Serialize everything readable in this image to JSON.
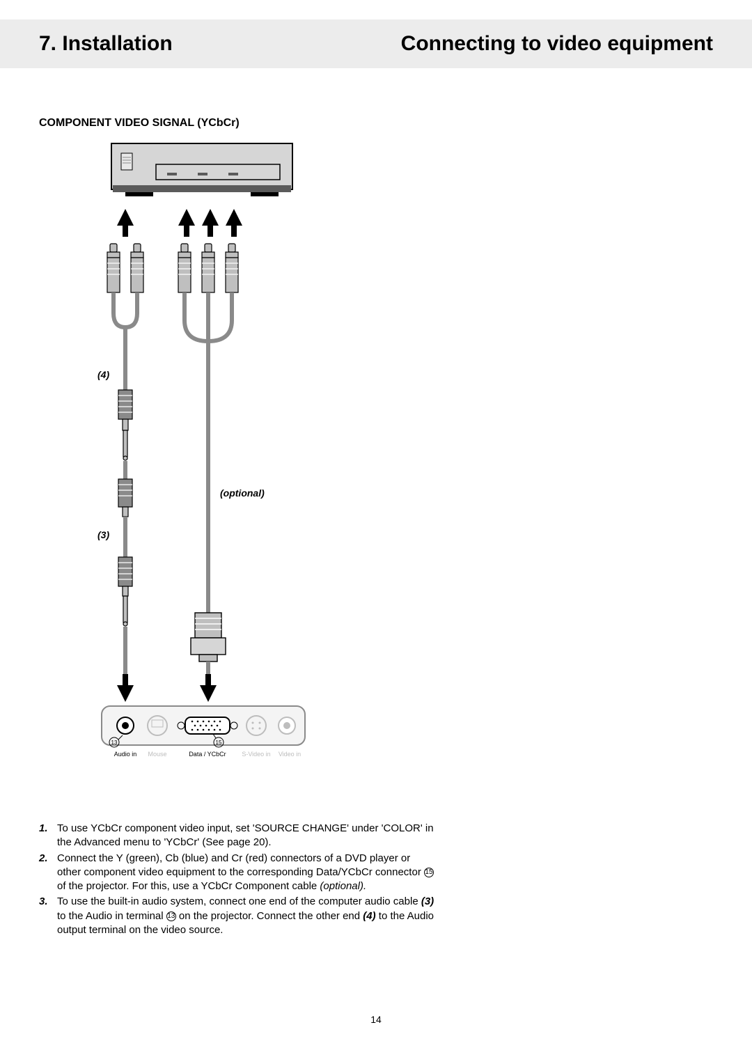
{
  "header": {
    "left": "7. Installation",
    "right": "Connecting to video equipment"
  },
  "section_title": "COMPONENT VIDEO SIGNAL (YCbCr)",
  "diagram": {
    "callouts": {
      "four": "(4)",
      "three": "(3)",
      "optional": "(optional)"
    },
    "port_labels": {
      "audio_in": "Audio in",
      "mouse": "Mouse",
      "data_ycbcr": "Data / YCbCr",
      "svideo_in": "S-Video in",
      "video_in": "Video in"
    },
    "ref_numbers": {
      "thirteen": "13",
      "fifteen": "15"
    },
    "colors": {
      "device_body": "#d6d6d6",
      "device_dark": "#5b5b5b",
      "cable_gray": "#8a8a8a",
      "cable_dark": "#4a4a4a",
      "connector_body": "#bfbfbf",
      "arrow": "#000000",
      "panel_stroke": "#8a8a8a",
      "panel_fill": "#f4f4f4",
      "text_muted": "#bdbdbd",
      "text_dark": "#000000"
    }
  },
  "instructions": {
    "items": [
      {
        "n": "1.",
        "text_parts": [
          {
            "t": "To use YCbCr component video input, set 'SOURCE CHANGE' under 'COLOR' in the Advanced menu to 'YCbCr' (See page 20)."
          }
        ]
      },
      {
        "n": "2.",
        "text_parts": [
          {
            "t": "Connect the Y (green), Cb (blue) and Cr (red) connectors of a DVD player or other component video equipment to the corresponding Data/YCbCr connector "
          },
          {
            "circled": "15"
          },
          {
            "t": " of the projector. For this, use a YCbCr Component cable "
          },
          {
            "i": "(optional)."
          }
        ]
      },
      {
        "n": "3.",
        "text_parts": [
          {
            "t": "To use the built-in audio system, connect one end of the computer audio cable "
          },
          {
            "b": "(3)"
          },
          {
            "t": " to the Audio in terminal "
          },
          {
            "circled": "13"
          },
          {
            "t": " on the projector. Connect the other end "
          },
          {
            "b": "(4)"
          },
          {
            "t": " to the Audio output terminal on the video source."
          }
        ]
      }
    ]
  },
  "page_number": "14"
}
